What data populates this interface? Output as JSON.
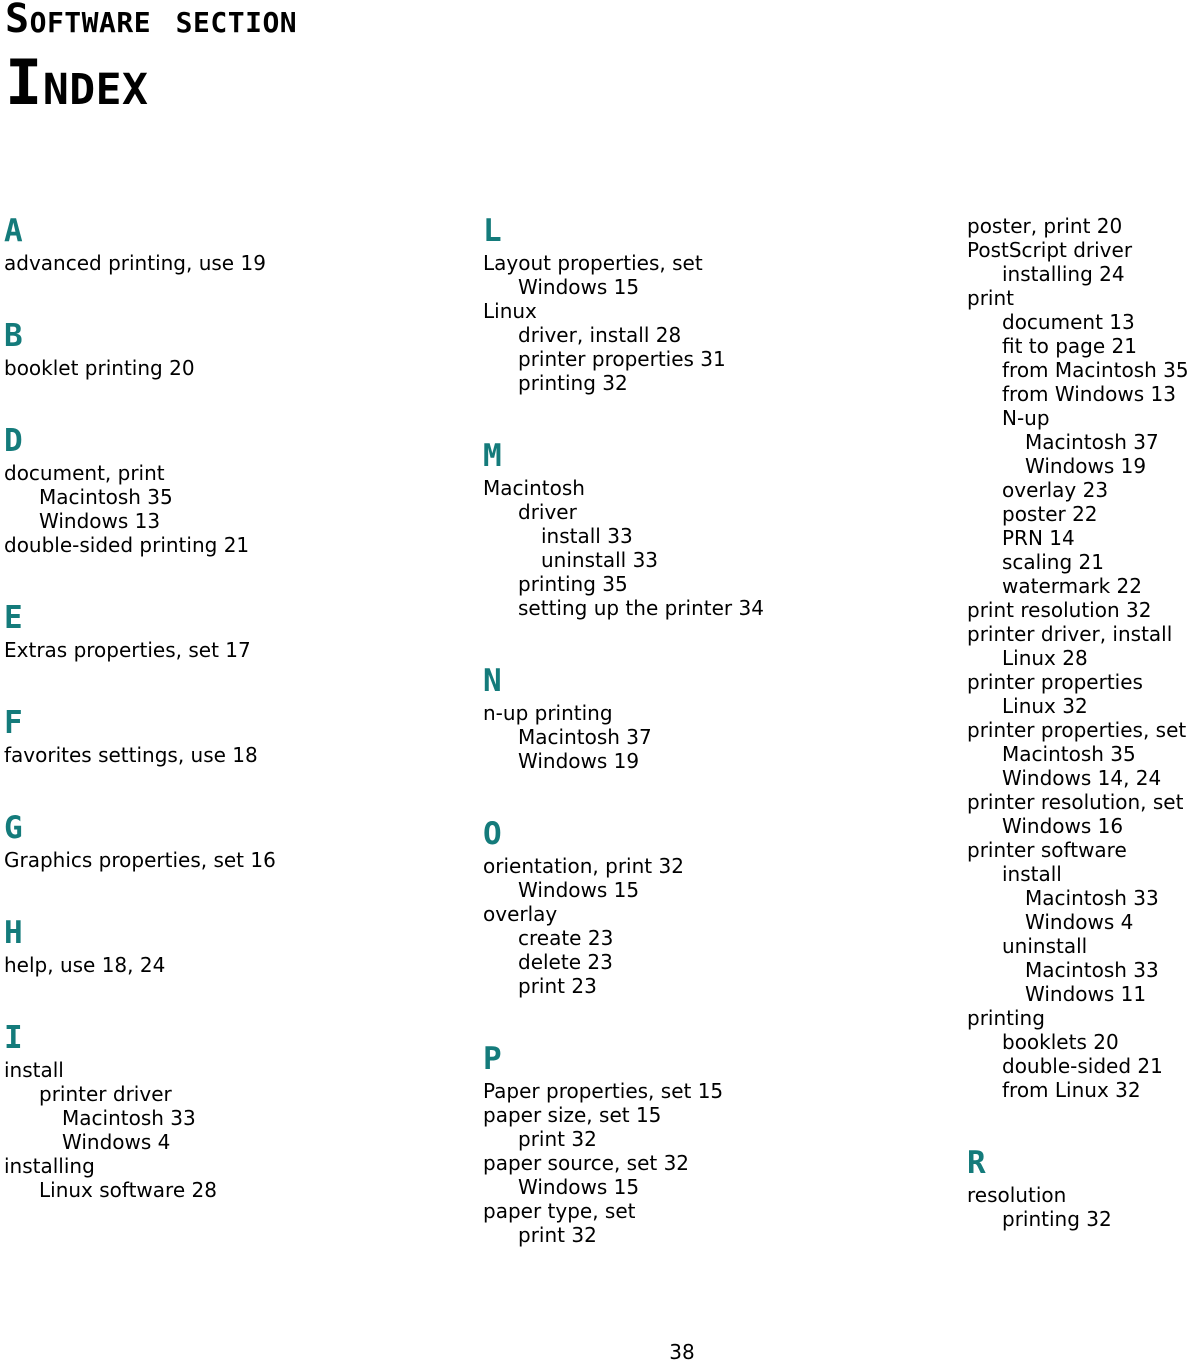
{
  "header": {
    "section_label": "Software section",
    "page_title": "Index"
  },
  "footer": {
    "page_number": "38"
  },
  "colors": {
    "accent": "#147b7b",
    "text": "#000000",
    "background": "#ffffff"
  },
  "index": {
    "columns": [
      {
        "blocks": [
          {
            "letter": "A",
            "entries": [
              {
                "text": "advanced printing, use 19",
                "indent": 0
              }
            ]
          },
          {
            "letter": "B",
            "entries": [
              {
                "text": "booklet printing 20",
                "indent": 0
              }
            ]
          },
          {
            "letter": "D",
            "entries": [
              {
                "text": "document, print",
                "indent": 0
              },
              {
                "text": "Macintosh 35",
                "indent": 1
              },
              {
                "text": "Windows 13",
                "indent": 1
              },
              {
                "text": "double-sided printing 21",
                "indent": 0
              }
            ]
          },
          {
            "letter": "E",
            "entries": [
              {
                "text": "Extras properties, set 17",
                "indent": 0
              }
            ]
          },
          {
            "letter": "F",
            "entries": [
              {
                "text": "favorites settings, use 18",
                "indent": 0
              }
            ]
          },
          {
            "letter": "G",
            "entries": [
              {
                "text": "Graphics properties, set 16",
                "indent": 0
              }
            ]
          },
          {
            "letter": "H",
            "entries": [
              {
                "text": "help, use 18, 24",
                "indent": 0
              }
            ]
          },
          {
            "letter": "I",
            "entries": [
              {
                "text": "install",
                "indent": 0
              },
              {
                "text": "printer driver",
                "indent": 1
              },
              {
                "text": "Macintosh 33",
                "indent": 2
              },
              {
                "text": "Windows 4",
                "indent": 2
              },
              {
                "text": "installing",
                "indent": 0
              },
              {
                "text": "Linux software 28",
                "indent": 1
              }
            ]
          }
        ]
      },
      {
        "blocks": [
          {
            "letter": "L",
            "entries": [
              {
                "text": "Layout properties, set",
                "indent": 0
              },
              {
                "text": "Windows 15",
                "indent": 1
              },
              {
                "text": "Linux",
                "indent": 0
              },
              {
                "text": "driver, install 28",
                "indent": 1
              },
              {
                "text": "printer properties 31",
                "indent": 1
              },
              {
                "text": "printing 32",
                "indent": 1
              }
            ]
          },
          {
            "letter": "M",
            "entries": [
              {
                "text": "Macintosh",
                "indent": 0
              },
              {
                "text": "driver",
                "indent": 1
              },
              {
                "text": "install 33",
                "indent": 2
              },
              {
                "text": "uninstall 33",
                "indent": 2
              },
              {
                "text": "printing 35",
                "indent": 1
              },
              {
                "text": "setting up the printer 34",
                "indent": 1
              }
            ]
          },
          {
            "letter": "N",
            "entries": [
              {
                "text": "n-up printing",
                "indent": 0
              },
              {
                "text": "Macintosh 37",
                "indent": 1
              },
              {
                "text": "Windows 19",
                "indent": 1
              }
            ]
          },
          {
            "letter": "O",
            "entries": [
              {
                "text": "orientation, print 32",
                "indent": 0
              },
              {
                "text": "Windows 15",
                "indent": 1
              },
              {
                "text": "overlay",
                "indent": 0
              },
              {
                "text": "create 23",
                "indent": 1
              },
              {
                "text": "delete 23",
                "indent": 1
              },
              {
                "text": "print 23",
                "indent": 1
              }
            ]
          },
          {
            "letter": "P",
            "entries": [
              {
                "text": "Paper properties, set 15",
                "indent": 0
              },
              {
                "text": "paper size, set 15",
                "indent": 0
              },
              {
                "text": "print 32",
                "indent": 1
              },
              {
                "text": "paper source, set 32",
                "indent": 0
              },
              {
                "text": "Windows 15",
                "indent": 1
              },
              {
                "text": "paper type, set",
                "indent": 0
              },
              {
                "text": "print 32",
                "indent": 1
              }
            ]
          }
        ]
      },
      {
        "blocks": [
          {
            "letter": null,
            "entries": [
              {
                "text": "poster, print 20",
                "indent": 0
              },
              {
                "text": "PostScript driver",
                "indent": 0
              },
              {
                "text": "installing 24",
                "indent": 1
              },
              {
                "text": "print",
                "indent": 0
              },
              {
                "text": "document 13",
                "indent": 1
              },
              {
                "text": "fit to page 21",
                "indent": 1
              },
              {
                "text": "from Macintosh 35",
                "indent": 1
              },
              {
                "text": "from Windows 13",
                "indent": 1
              },
              {
                "text": "N-up",
                "indent": 1
              },
              {
                "text": "Macintosh 37",
                "indent": 2
              },
              {
                "text": "Windows 19",
                "indent": 2
              },
              {
                "text": "overlay 23",
                "indent": 1
              },
              {
                "text": "poster 22",
                "indent": 1
              },
              {
                "text": "PRN 14",
                "indent": 1
              },
              {
                "text": "scaling 21",
                "indent": 1
              },
              {
                "text": "watermark 22",
                "indent": 1
              },
              {
                "text": "print resolution 32",
                "indent": 0
              },
              {
                "text": "printer driver, install",
                "indent": 0
              },
              {
                "text": "Linux 28",
                "indent": 1
              },
              {
                "text": "printer properties",
                "indent": 0
              },
              {
                "text": "Linux 32",
                "indent": 1
              },
              {
                "text": "printer properties, set",
                "indent": 0
              },
              {
                "text": "Macintosh 35",
                "indent": 1
              },
              {
                "text": "Windows 14, 24",
                "indent": 1
              },
              {
                "text": "printer resolution, set",
                "indent": 0
              },
              {
                "text": "Windows 16",
                "indent": 1
              },
              {
                "text": "printer software",
                "indent": 0
              },
              {
                "text": "install",
                "indent": 1
              },
              {
                "text": "Macintosh 33",
                "indent": 2
              },
              {
                "text": "Windows 4",
                "indent": 2
              },
              {
                "text": "uninstall",
                "indent": 1
              },
              {
                "text": "Macintosh 33",
                "indent": 2
              },
              {
                "text": "Windows 11",
                "indent": 2
              },
              {
                "text": "printing",
                "indent": 0
              },
              {
                "text": "booklets 20",
                "indent": 1
              },
              {
                "text": "double-sided 21",
                "indent": 1
              },
              {
                "text": "from Linux 32",
                "indent": 1
              }
            ]
          },
          {
            "letter": "R",
            "entries": [
              {
                "text": "resolution",
                "indent": 0
              },
              {
                "text": "printing 32",
                "indent": 1
              }
            ]
          }
        ]
      }
    ]
  }
}
